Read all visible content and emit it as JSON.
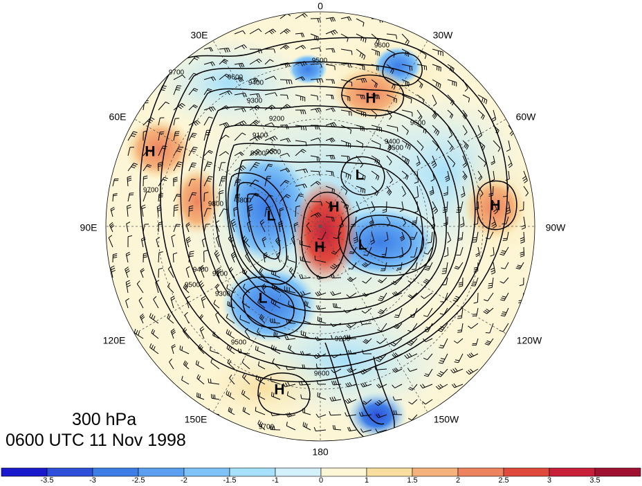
{
  "map": {
    "projection": "north-polar-stereographic",
    "level_label": "300 hPa",
    "valid_time": "0600 UTC 11 Nov 1998",
    "longitude_labels": [
      "0",
      "30W",
      "60W",
      "90W",
      "120W",
      "150W",
      "180",
      "150E",
      "120E",
      "90E",
      "60E",
      "30E"
    ],
    "contour_labels": [
      "9600",
      "9500",
      "9400",
      "9300",
      "9200",
      "9100",
      "9000",
      "8900",
      "8800",
      "9700",
      "9800",
      "9600",
      "9500",
      "9400",
      "9300",
      "9200",
      "9600",
      "9500",
      "9700",
      "9600",
      "9400",
      "9200",
      "9500",
      "9700"
    ],
    "centers": [
      {
        "label": "H",
        "type": "high"
      },
      {
        "label": "H",
        "type": "high"
      },
      {
        "label": "H",
        "type": "high"
      },
      {
        "label": "H",
        "type": "high"
      },
      {
        "label": "H",
        "type": "high"
      },
      {
        "label": "H",
        "type": "high"
      },
      {
        "label": "L",
        "type": "low"
      },
      {
        "label": "L",
        "type": "low"
      },
      {
        "label": "L",
        "type": "low"
      },
      {
        "label": "L",
        "type": "low"
      }
    ],
    "colorbar": {
      "tick_labels": [
        "-3.5",
        "-3",
        "-2.5",
        "-2",
        "-1.5",
        "-1",
        "0",
        "1",
        "1.5",
        "2",
        "2.5",
        "3",
        "3.5"
      ],
      "colors": [
        "#1a1acc",
        "#2e4fd9",
        "#3d7ee6",
        "#5a9ff0",
        "#7fc2f7",
        "#a6e0fa",
        "#d4f1fb",
        "#fdf6d6",
        "#f8df9f",
        "#f5b27a",
        "#ee845f",
        "#e04a3d",
        "#c8203a",
        "#a01030"
      ]
    }
  }
}
